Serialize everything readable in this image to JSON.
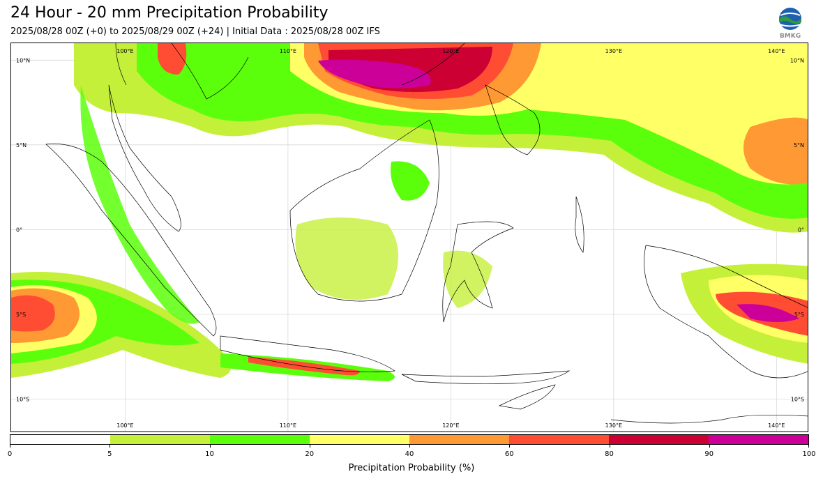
{
  "header": {
    "title": "24 Hour - 20 mm Precipitation Probability",
    "subtitle": "2025/08/28 00Z (+0) to 2025/08/29 00Z (+24) | Initial Data : 2025/08/28 00Z IFS",
    "logo_text": "BMKG"
  },
  "map": {
    "lon_range": [
      93,
      142
    ],
    "lat_range": [
      -12,
      11
    ],
    "lon_labels_top": [
      "100°E",
      "110°E",
      "120°E",
      "130°E",
      "140°E"
    ],
    "lon_labels_bottom": [
      "100°E",
      "110°E",
      "120°E",
      "130°E",
      "140°E"
    ],
    "lat_labels_left": [
      "10°N",
      "5°N",
      "0°",
      "5°S",
      "10°S"
    ],
    "lat_labels_right": [
      "10°N",
      "5°N",
      "0°",
      "5°S",
      "10°S"
    ],
    "gridlines": true
  },
  "colorbar": {
    "label": "Precipitation Probability (%)",
    "ticks": [
      "0",
      "5",
      "10",
      "20",
      "40",
      "60",
      "80",
      "90",
      "100"
    ],
    "colors": [
      "#ffffff",
      "#c5f03a",
      "#5cff0b",
      "#ffff66",
      "#ff9933",
      "#ff4d33",
      "#cc0033",
      "#cc0099"
    ]
  }
}
